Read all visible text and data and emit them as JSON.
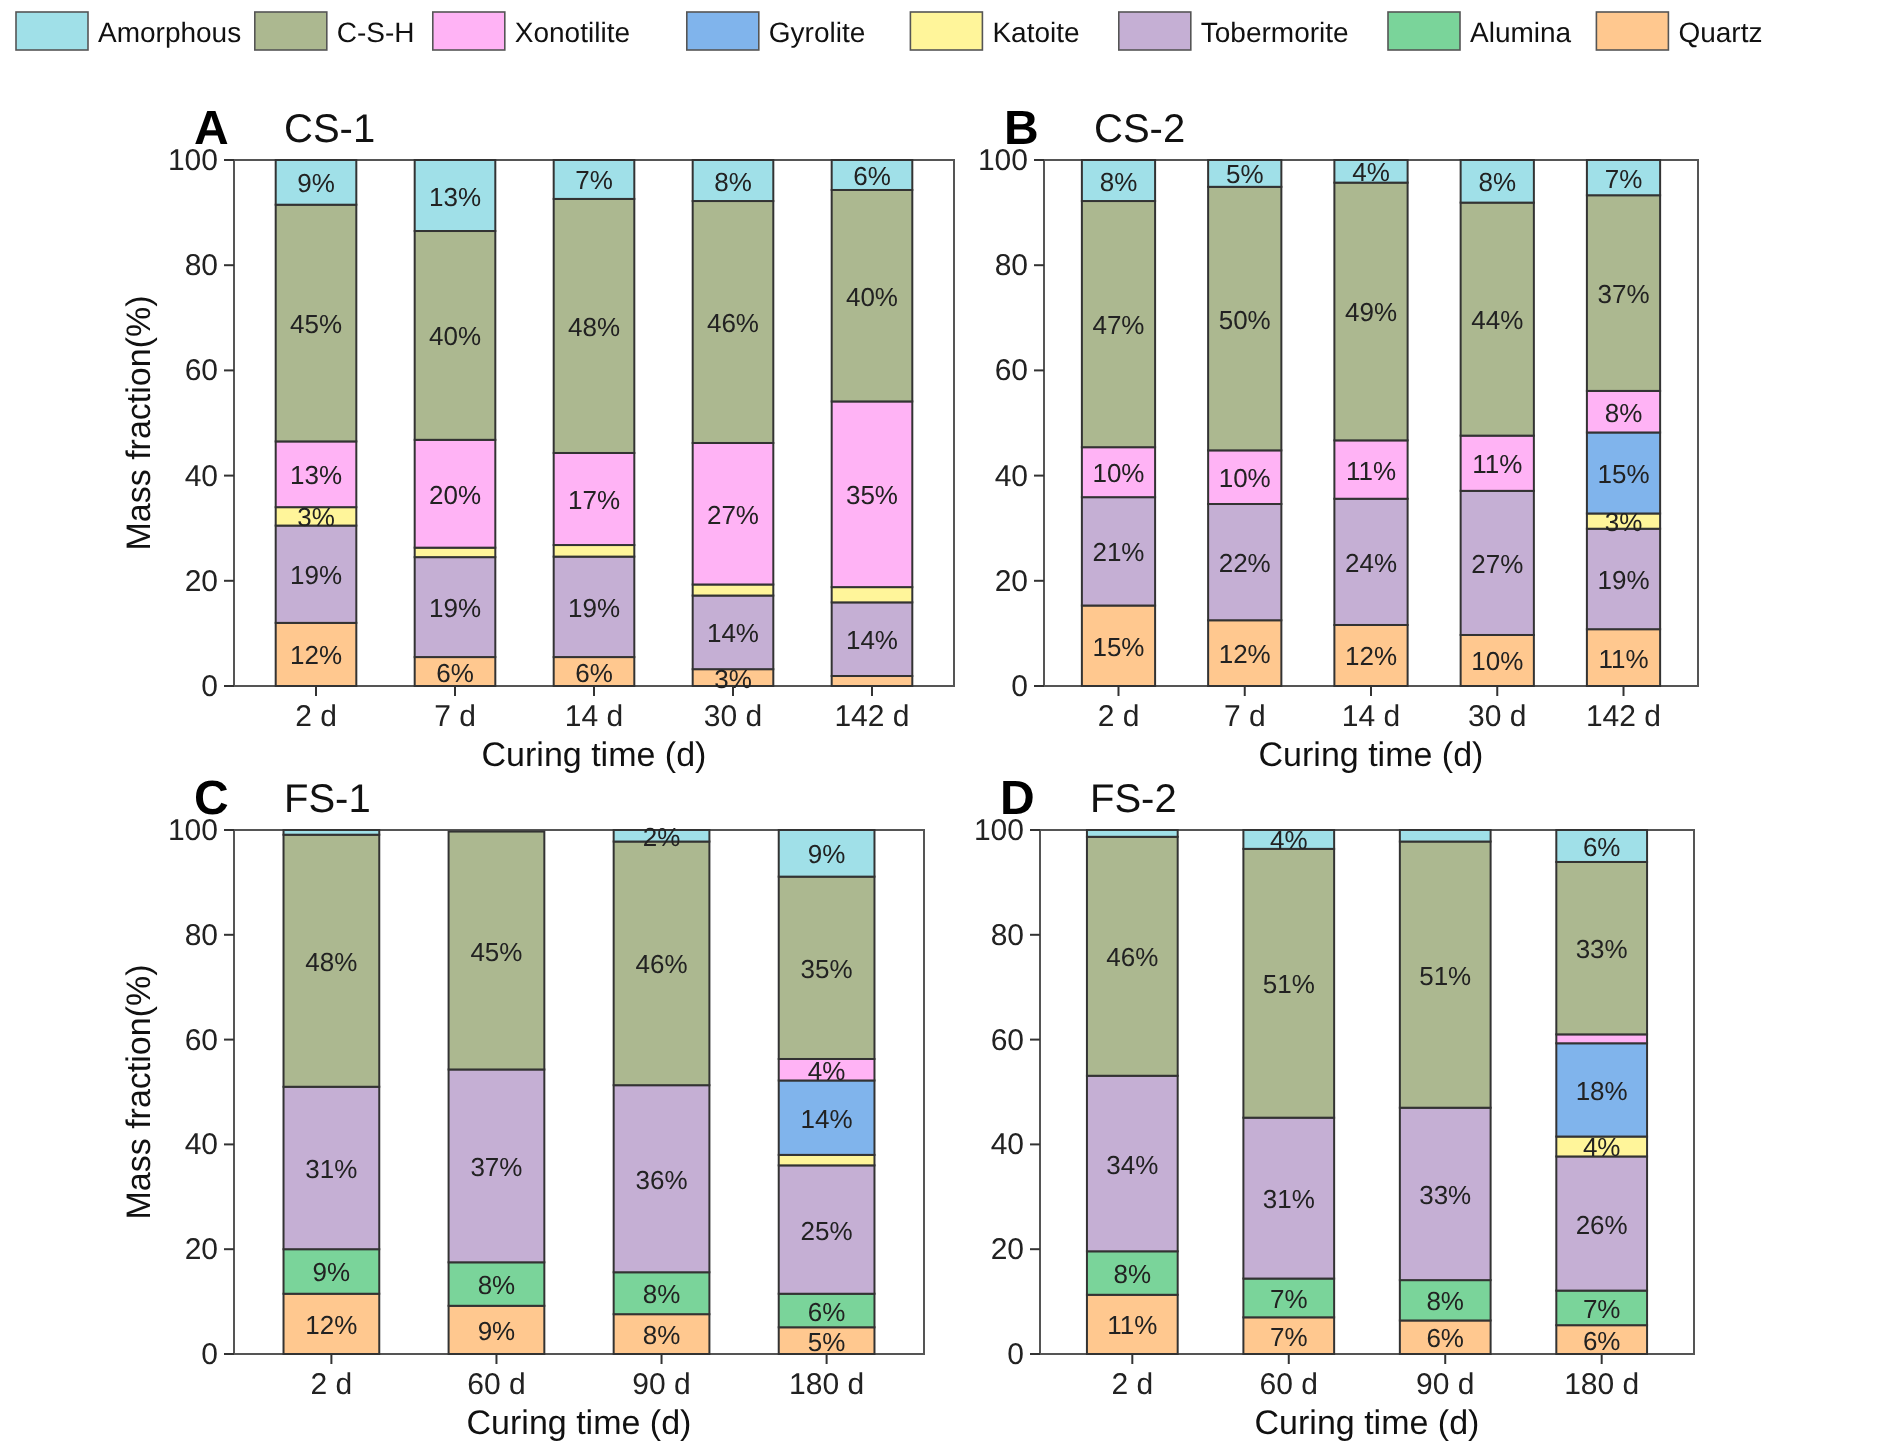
{
  "chart_data": [
    {
      "type": "bar",
      "stacked": true,
      "title": "CS-1",
      "annotations": [
        "A"
      ],
      "xlabel": "Curing time (d)",
      "ylabel": "Mass fraction(%)",
      "categories": [
        "2 d",
        "7 d",
        "14 d",
        "30 d",
        "142 d"
      ],
      "ylim": [
        0,
        100
      ],
      "yticks": [
        0,
        20,
        40,
        60,
        80,
        100
      ],
      "legend": "top",
      "series": [
        {
          "name": "Quartz",
          "color": "#ffc88f",
          "values": [
            12,
            5.5,
            5.5,
            3.2,
            1.9
          ],
          "value_labels": [
            "12%",
            "6%",
            "6%",
            "3%",
            null
          ]
        },
        {
          "name": "Alumina",
          "color": "#7ad49a",
          "values": [
            null,
            null,
            null,
            null,
            null
          ]
        },
        {
          "name": "Tobermorite",
          "color": "#c5afd4",
          "values": [
            18.5,
            19,
            19.1,
            14,
            14
          ],
          "value_labels": [
            "19%",
            "19%",
            "19%",
            "14%",
            "14%"
          ]
        },
        {
          "name": "Katoite",
          "color": "#fff59a",
          "values": [
            3.5,
            1.8,
            2.2,
            2.1,
            2.9
          ],
          "value_labels": [
            "3%",
            null,
            null,
            null,
            null
          ]
        },
        {
          "name": "Gyrolite",
          "color": "#80b4ec",
          "values": [
            null,
            null,
            null,
            null,
            null
          ]
        },
        {
          "name": "Xonotilite",
          "color": "#ffb3f5",
          "values": [
            12.5,
            20.5,
            17.5,
            26.9,
            35.3
          ],
          "value_labels": [
            "13%",
            "20%",
            "17%",
            "27%",
            "35%"
          ]
        },
        {
          "name": "C-S-H",
          "color": "#acb890",
          "values": [
            45,
            39.7,
            48.3,
            46,
            40.2
          ],
          "value_labels": [
            "45%",
            "40%",
            "48%",
            "46%",
            "40%"
          ]
        },
        {
          "name": "Amorphous",
          "color": "#a0e0e8",
          "values": [
            8.5,
            13.5,
            7.4,
            7.8,
            5.7
          ],
          "value_labels": [
            "9%",
            "13%",
            "7%",
            "8%",
            "6%"
          ]
        }
      ]
    },
    {
      "type": "bar",
      "stacked": true,
      "title": "CS-2",
      "annotations": [
        "B"
      ],
      "xlabel": "Curing time (d)",
      "categories": [
        "2 d",
        "7 d",
        "14 d",
        "30 d",
        "142 d"
      ],
      "ylim": [
        0,
        100
      ],
      "yticks": [
        0,
        20,
        40,
        60,
        80,
        100
      ],
      "series": [
        {
          "color": "#ffc88f",
          "values": [
            15.3,
            12.5,
            11.6,
            9.7,
            10.8
          ],
          "value_labels": [
            "15%",
            "12%",
            "12%",
            "10%",
            "11%"
          ]
        },
        {
          "color": "#c5afd4",
          "values": [
            20.6,
            22.1,
            24,
            27.4,
            19.1
          ],
          "value_labels": [
            "21%",
            "22%",
            "24%",
            "27%",
            "19%"
          ]
        },
        {
          "color": "#fff59a",
          "values": [
            null,
            null,
            null,
            null,
            2.9
          ],
          "value_labels": [
            null,
            null,
            null,
            null,
            "3%"
          ]
        },
        {
          "color": "#80b4ec",
          "values": [
            null,
            null,
            null,
            null,
            15.4
          ],
          "value_labels": [
            null,
            null,
            null,
            null,
            "15%"
          ]
        },
        {
          "color": "#ffb3f5",
          "values": [
            9.5,
            10.2,
            11.1,
            10.5,
            7.9
          ],
          "value_labels": [
            "10%",
            "10%",
            "11%",
            "11%",
            "8%"
          ]
        },
        {
          "color": "#acb890",
          "values": [
            46.8,
            50.1,
            49,
            44.3,
            37.2
          ],
          "value_labels": [
            "47%",
            "50%",
            "49%",
            "44%",
            "37%"
          ]
        },
        {
          "color": "#a0e0e8",
          "values": [
            7.8,
            5.1,
            4.3,
            8.1,
            6.7
          ],
          "value_labels": [
            "8%",
            "5%",
            "4%",
            "8%",
            "7%"
          ]
        }
      ]
    },
    {
      "type": "bar",
      "stacked": true,
      "title": "FS-1",
      "annotations": [
        "C"
      ],
      "xlabel": "Curing time (d)",
      "ylabel": "Mass fraction(%)",
      "categories": [
        "2 d",
        "60 d",
        "90 d",
        "180 d"
      ],
      "ylim": [
        0,
        100
      ],
      "yticks": [
        0,
        20,
        40,
        60,
        80,
        100
      ],
      "series": [
        {
          "color": "#ffc88f",
          "values": [
            11.5,
            9.2,
            7.6,
            5.1
          ],
          "value_labels": [
            "12%",
            "9%",
            "8%",
            "5%"
          ]
        },
        {
          "color": "#7ad49a",
          "values": [
            8.5,
            8.3,
            8,
            6.4
          ],
          "value_labels": [
            "9%",
            "8%",
            "8%",
            "6%"
          ]
        },
        {
          "color": "#c5afd4",
          "values": [
            31,
            36.8,
            35.7,
            24.5
          ],
          "value_labels": [
            "31%",
            "37%",
            "36%",
            "25%"
          ]
        },
        {
          "color": "#fff59a",
          "values": [
            null,
            null,
            null,
            2
          ]
        },
        {
          "color": "#80b4ec",
          "values": [
            null,
            null,
            null,
            14.2
          ],
          "value_labels": [
            null,
            null,
            null,
            "14%"
          ]
        },
        {
          "color": "#ffb3f5",
          "values": [
            null,
            null,
            null,
            4.1
          ],
          "value_labels": [
            null,
            null,
            null,
            "4%"
          ]
        },
        {
          "color": "#acb890",
          "values": [
            48.1,
            45.4,
            46.5,
            34.8
          ],
          "value_labels": [
            "48%",
            "45%",
            "46%",
            "35%"
          ]
        },
        {
          "color": "#a0e0e8",
          "values": [
            0.9,
            null,
            2.2,
            8.9
          ],
          "value_labels": [
            null,
            null,
            "2%",
            "9%"
          ]
        }
      ]
    },
    {
      "type": "bar",
      "stacked": true,
      "title": "FS-2",
      "annotations": [
        "D"
      ],
      "xlabel": "Curing time (d)",
      "categories": [
        "2 d",
        "60 d",
        "90 d",
        "180 d"
      ],
      "ylim": [
        0,
        100
      ],
      "yticks": [
        0,
        20,
        40,
        60,
        80,
        100
      ],
      "series": [
        {
          "color": "#ffc88f",
          "values": [
            11.3,
            7,
            6.4,
            5.5
          ],
          "value_labels": [
            "11%",
            "7%",
            "6%",
            "6%"
          ]
        },
        {
          "color": "#7ad49a",
          "values": [
            8.3,
            7.4,
            7.7,
            6.6
          ],
          "value_labels": [
            "8%",
            "7%",
            "8%",
            "7%"
          ]
        },
        {
          "color": "#c5afd4",
          "values": [
            33.5,
            30.7,
            32.9,
            25.6
          ],
          "value_labels": [
            "34%",
            "31%",
            "33%",
            "26%"
          ]
        },
        {
          "color": "#fff59a",
          "values": [
            null,
            null,
            null,
            3.8
          ],
          "value_labels": [
            null,
            null,
            null,
            "4%"
          ]
        },
        {
          "color": "#80b4ec",
          "values": [
            null,
            null,
            null,
            17.8
          ],
          "value_labels": [
            null,
            null,
            null,
            "18%"
          ]
        },
        {
          "color": "#ffb3f5",
          "values": [
            null,
            null,
            null,
            1.7
          ]
        },
        {
          "color": "#acb890",
          "values": [
            45.6,
            51.3,
            50.8,
            32.9
          ],
          "value_labels": [
            "46%",
            "51%",
            "51%",
            "33%"
          ]
        },
        {
          "color": "#a0e0e8",
          "values": [
            1.3,
            3.6,
            2.2,
            6.1
          ],
          "value_labels": [
            null,
            "4%",
            null,
            "6%"
          ]
        }
      ]
    }
  ]
}
